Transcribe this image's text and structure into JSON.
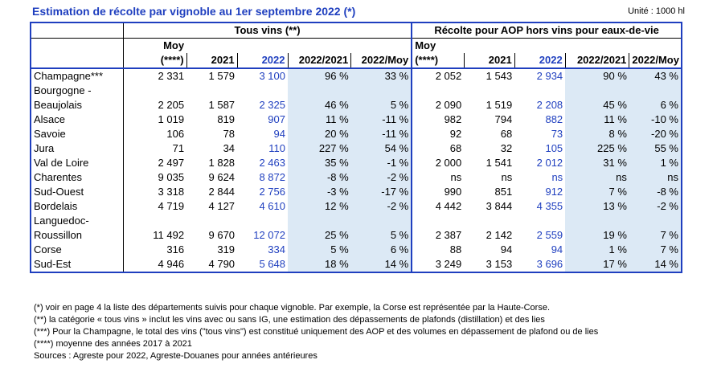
{
  "title": "Estimation de récolte par vignoble au 1er septembre 2022 (*)",
  "unit": "Unité : 1000 hl",
  "groups": {
    "all": "Tous vins (**)",
    "aop": "Récolte pour AOP hors vins pour eaux-de-vie"
  },
  "headers": {
    "moy1": "Moy",
    "moy2": "(****)",
    "y2021": "2021",
    "y2022": "2022",
    "r2122": "2022/2021",
    "rmoy": "2022/Moy"
  },
  "rows": [
    {
      "name": [
        "Champagne***"
      ],
      "t": [
        "2 331",
        "1 579",
        "3 100",
        "96 %",
        "33 %"
      ],
      "a": [
        "2 052",
        "1 543",
        "2 934",
        "90 %",
        "43 %"
      ]
    },
    {
      "name": [
        "Bourgogne -",
        "Beaujolais"
      ],
      "t": [
        "2 205",
        "1 587",
        "2 325",
        "46 %",
        "5 %"
      ],
      "a": [
        "2 090",
        "1 519",
        "2 208",
        "45 %",
        "6 %"
      ]
    },
    {
      "name": [
        "Alsace"
      ],
      "t": [
        "1 019",
        "819",
        "907",
        "11 %",
        "-11 %"
      ],
      "a": [
        "982",
        "794",
        "882",
        "11 %",
        "-10 %"
      ]
    },
    {
      "name": [
        "Savoie"
      ],
      "t": [
        "106",
        "78",
        "94",
        "20 %",
        "-11 %"
      ],
      "a": [
        "92",
        "68",
        "73",
        "8 %",
        "-20 %"
      ]
    },
    {
      "name": [
        "Jura"
      ],
      "t": [
        "71",
        "34",
        "110",
        "227 %",
        "54 %"
      ],
      "a": [
        "68",
        "32",
        "105",
        "225 %",
        "55 %"
      ]
    },
    {
      "name": [
        "Val de Loire"
      ],
      "t": [
        "2 497",
        "1 828",
        "2 463",
        "35 %",
        "-1 %"
      ],
      "a": [
        "2 000",
        "1 541",
        "2 012",
        "31 %",
        "1 %"
      ]
    },
    {
      "name": [
        "Charentes"
      ],
      "t": [
        "9 035",
        "9 624",
        "8 872",
        "-8 %",
        "-2 %"
      ],
      "a": [
        "ns",
        "ns",
        "ns",
        "ns",
        "ns"
      ]
    },
    {
      "name": [
        "Sud-Ouest"
      ],
      "t": [
        "3 318",
        "2 844",
        "2 756",
        "-3 %",
        "-17 %"
      ],
      "a": [
        "990",
        "851",
        "912",
        "7 %",
        "-8 %"
      ]
    },
    {
      "name": [
        "Bordelais"
      ],
      "t": [
        "4 719",
        "4 127",
        "4 610",
        "12 %",
        "-2 %"
      ],
      "a": [
        "4 442",
        "3 844",
        "4 355",
        "13 %",
        "-2 %"
      ]
    },
    {
      "name": [
        "Languedoc-",
        "Roussillon"
      ],
      "t": [
        "11 492",
        "9 670",
        "12 072",
        "25 %",
        "5 %"
      ],
      "a": [
        "2 387",
        "2 142",
        "2 559",
        "19 %",
        "7 %"
      ]
    },
    {
      "name": [
        "Corse"
      ],
      "t": [
        "316",
        "319",
        "334",
        "5 %",
        "6 %"
      ],
      "a": [
        "88",
        "94",
        "94",
        "1 %",
        "7 %"
      ]
    },
    {
      "name": [
        "Sud-Est"
      ],
      "t": [
        "4 946",
        "4 790",
        "5 648",
        "18 %",
        "14 %"
      ],
      "a": [
        "3 249",
        "3 153",
        "3 696",
        "17 %",
        "14 %"
      ]
    }
  ],
  "notes": [
    "(*) voir en page 4 la liste des départements suivis pour chaque vignoble. Par exemple, la Corse est représentée par la Haute-Corse.",
    "(**) la catégorie « tous vins » inclut les vins avec ou sans IG, une estimation des dépassements de plafonds (distillation) et des lies",
    "(***) Pour la Champagne, le total des vins (\"tous vins\") est constitué uniquement des AOP et des volumes en dépassement de plafond ou de lies",
    "(****) moyenne des années 2017 à 2021",
    "Sources : Agreste pour 2022, Agreste-Douanes pour années antérieures"
  ]
}
